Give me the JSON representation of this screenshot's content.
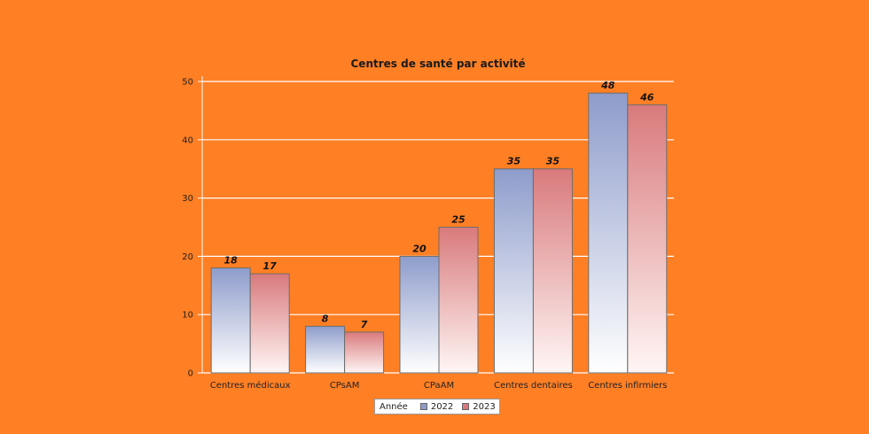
{
  "chart_data": {
    "type": "bar",
    "title": "Centres de santé par activité",
    "categories": [
      "Centres médicaux",
      "CPsAM",
      "CPaAM",
      "Centres dentaires",
      "Centres infirmiers"
    ],
    "series": [
      {
        "name": "2022",
        "values": [
          18,
          8,
          20,
          35,
          48
        ],
        "color": "#8E9CCB"
      },
      {
        "name": "2023",
        "values": [
          17,
          7,
          25,
          35,
          46
        ],
        "color": "#D97A7C"
      }
    ],
    "yticks": [
      0,
      10,
      20,
      30,
      40,
      50
    ],
    "ylim": [
      0,
      50
    ],
    "grid": true,
    "legend": {
      "title": "Année",
      "position": "bottom-center"
    },
    "background": "#FF7F24"
  }
}
